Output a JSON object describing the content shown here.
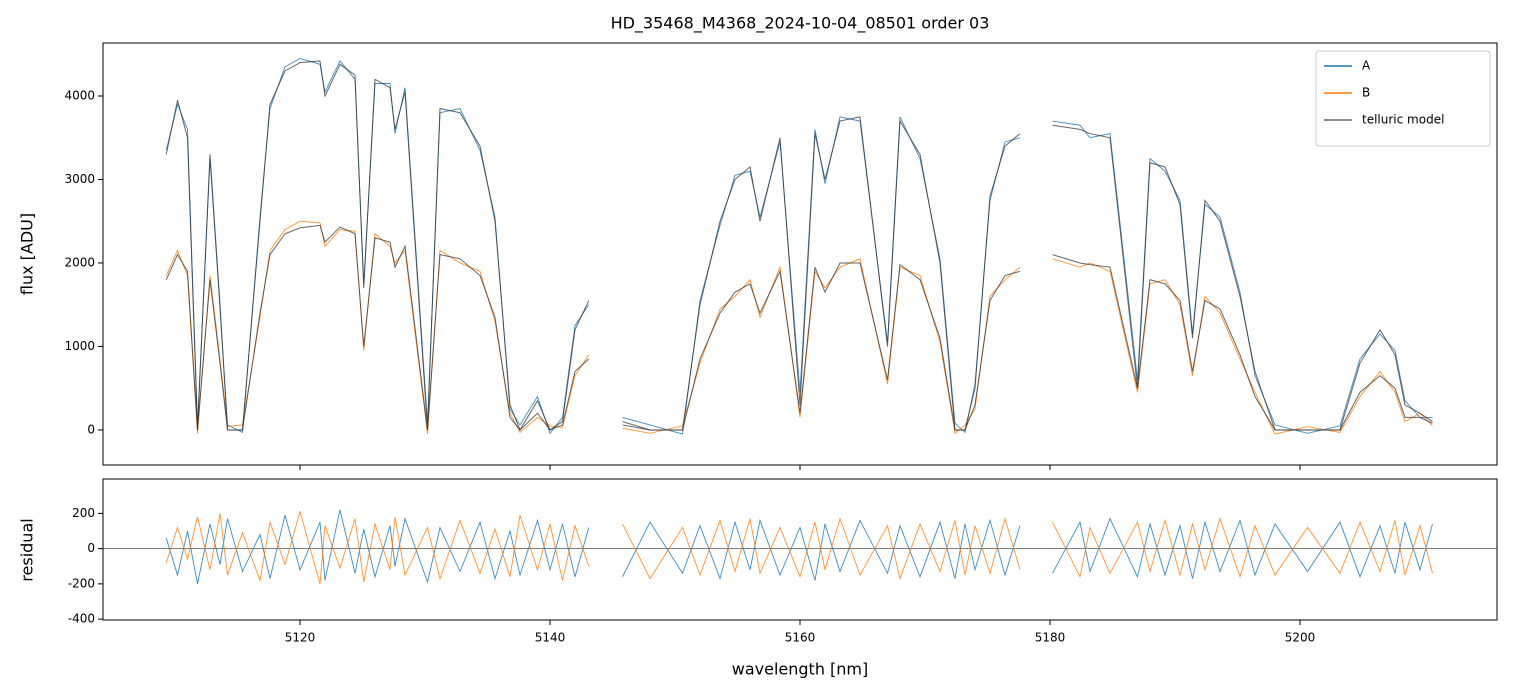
{
  "chart_data": [
    {
      "type": "line",
      "title": "HD_35468_M4368_2024-10-04_08501  order 03",
      "ylabel": "flux [ADU]",
      "x": [
        5109.3,
        5110.2,
        5111.0,
        5111.8,
        5112.8,
        5113.6,
        5114.2,
        5115.4,
        5116.8,
        5117.6,
        5118.8,
        5120.0,
        5121.6,
        5122.0,
        5123.2,
        5124.4,
        5125.1,
        5126.0,
        5127.2,
        5127.6,
        5128.4,
        5130.2,
        5131.2,
        5132.8,
        5134.4,
        5135.6,
        5136.8,
        5137.6,
        5139.0,
        5140.0,
        5141.0,
        5142.0,
        5143.1,
        5144.5,
        5145.8,
        5148.0,
        5150.6,
        5152.0,
        5153.6,
        5154.8,
        5156.0,
        5156.8,
        5158.4,
        5160.0,
        5161.2,
        5162.0,
        5163.2,
        5164.8,
        5167.0,
        5168.0,
        5169.6,
        5171.2,
        5172.4,
        5173.2,
        5174.0,
        5175.2,
        5176.4,
        5177.6,
        5178.9,
        5180.2,
        5182.4,
        5183.2,
        5184.8,
        5187.0,
        5188.0,
        5189.2,
        5190.4,
        5191.4,
        5192.4,
        5193.6,
        5195.2,
        5196.4,
        5198.0,
        5200.6,
        5203.2,
        5204.8,
        5206.4,
        5207.6,
        5208.4,
        5209.6,
        5210.6
      ],
      "series": [
        {
          "name": "A",
          "color": "#1f77b4",
          "values": [
            3350,
            3900,
            3600,
            50,
            3250,
            1450,
            60,
            -30,
            2550,
            3850,
            4350,
            4450,
            4380,
            4050,
            4420,
            4200,
            1750,
            4150,
            4150,
            3550,
            4100,
            80,
            3800,
            3850,
            3350,
            2550,
            250,
            60,
            400,
            -40,
            150,
            1250,
            1500,
            null,
            150,
            60,
            -50,
            1550,
            2450,
            3050,
            3100,
            2550,
            3450,
            450,
            3600,
            2950,
            3750,
            3700,
            1050,
            3750,
            3250,
            2050,
            80,
            -30,
            550,
            2750,
            3450,
            3500,
            null,
            3700,
            3650,
            3500,
            3550,
            600,
            3250,
            3100,
            2750,
            1150,
            2700,
            2550,
            1650,
            650,
            60,
            -40,
            50,
            850,
            1150,
            950,
            350,
            150,
            150
          ]
        },
        {
          "name": "B",
          "color": "#ff7f0e",
          "values": [
            1850,
            2150,
            1850,
            -40,
            1850,
            850,
            40,
            60,
            1350,
            2150,
            2400,
            2500,
            2480,
            2200,
            2400,
            2380,
            950,
            2350,
            2200,
            2000,
            2150,
            -50,
            2150,
            2000,
            1900,
            1300,
            200,
            -30,
            150,
            50,
            30,
            650,
            900,
            null,
            20,
            -40,
            50,
            800,
            1450,
            1600,
            1800,
            1350,
            1950,
            150,
            1900,
            1700,
            1950,
            2050,
            550,
            1950,
            1850,
            1050,
            -40,
            60,
            250,
            1600,
            1800,
            1950,
            null,
            2050,
            1950,
            2000,
            1900,
            450,
            1750,
            1800,
            1500,
            650,
            1600,
            1400,
            850,
            450,
            -50,
            40,
            -30,
            400,
            700,
            450,
            100,
            200,
            50
          ]
        },
        {
          "name": "telluric model",
          "color": "#333333",
          "model": true,
          "values": [
            3300,
            3950,
            3500,
            0,
            3300,
            1500,
            0,
            0,
            2500,
            3900,
            4300,
            4400,
            4420,
            4000,
            4380,
            4250,
            1700,
            4200,
            4100,
            3600,
            4050,
            0,
            3850,
            3800,
            3400,
            2500,
            300,
            0,
            350,
            0,
            100,
            1200,
            1550,
            null,
            100,
            0,
            0,
            1500,
            2500,
            3000,
            3150,
            2500,
            3500,
            300,
            3550,
            3000,
            3700,
            3750,
            1000,
            3700,
            3300,
            2000,
            0,
            0,
            500,
            2800,
            3400,
            3550,
            null,
            3650,
            3600,
            3550,
            3500,
            500,
            3200,
            3150,
            2700,
            1100,
            2750,
            2500,
            1600,
            700,
            0,
            0,
            0,
            800,
            1200,
            900,
            300,
            200,
            100
          ]
        },
        {
          "color": "#333333",
          "model": true,
          "values": [
            1800,
            2100,
            1900,
            0,
            1800,
            800,
            0,
            0,
            1400,
            2100,
            2350,
            2420,
            2450,
            2250,
            2430,
            2350,
            1000,
            2300,
            2250,
            1950,
            2200,
            0,
            2100,
            2050,
            1850,
            1350,
            150,
            0,
            200,
            0,
            60,
            700,
            850,
            null,
            60,
            0,
            0,
            850,
            1400,
            1650,
            1750,
            1400,
            1900,
            200,
            1950,
            1650,
            2000,
            2000,
            600,
            1980,
            1800,
            1100,
            0,
            0,
            300,
            1550,
            1850,
            1900,
            null,
            2100,
            2000,
            1980,
            1950,
            500,
            1800,
            1750,
            1550,
            700,
            1550,
            1450,
            900,
            400,
            0,
            0,
            0,
            450,
            650,
            500,
            150,
            150,
            80
          ]
        }
      ],
      "xlim": [
        5104.24,
        5215.76
      ],
      "xticks": [
        5120,
        5140,
        5160,
        5180,
        5200
      ],
      "ylim": [
        -420,
        4635
      ],
      "yticks": [
        0,
        1000,
        2000,
        3000,
        4000
      ],
      "legend": "upper right"
    },
    {
      "type": "line",
      "xlabel": "wavelength [nm]",
      "ylabel": "residual",
      "x": [
        5109.3,
        5110.2,
        5111.0,
        5111.8,
        5112.8,
        5113.6,
        5114.2,
        5115.4,
        5116.8,
        5117.6,
        5118.8,
        5120.0,
        5121.6,
        5122.0,
        5123.2,
        5124.4,
        5125.1,
        5126.0,
        5127.2,
        5127.6,
        5128.4,
        5130.2,
        5131.2,
        5132.8,
        5134.4,
        5135.6,
        5136.8,
        5137.6,
        5139.0,
        5140.0,
        5141.0,
        5142.0,
        5143.1,
        5144.5,
        5145.8,
        5148.0,
        5150.6,
        5152.0,
        5153.6,
        5154.8,
        5156.0,
        5156.8,
        5158.4,
        5160.0,
        5161.2,
        5162.0,
        5163.2,
        5164.8,
        5167.0,
        5168.0,
        5169.6,
        5171.2,
        5172.4,
        5173.2,
        5174.0,
        5175.2,
        5176.4,
        5177.6,
        5178.9,
        5180.2,
        5182.4,
        5183.2,
        5184.8,
        5187.0,
        5188.0,
        5189.2,
        5190.4,
        5191.4,
        5192.4,
        5193.6,
        5195.2,
        5196.4,
        5198.0,
        5200.6,
        5203.2,
        5204.8,
        5206.4,
        5207.6,
        5208.4,
        5209.6,
        5210.6
      ],
      "series": [
        {
          "color": "#1f77b4",
          "values": [
            60,
            -150,
            100,
            -200,
            140,
            -90,
            170,
            -130,
            80,
            -170,
            190,
            -120,
            150,
            -180,
            220,
            -140,
            110,
            -160,
            130,
            -100,
            170,
            -190,
            120,
            -130,
            150,
            -170,
            100,
            -150,
            160,
            -120,
            140,
            -160,
            120,
            null,
            -160,
            150,
            -140,
            130,
            -170,
            150,
            -120,
            160,
            -150,
            120,
            -180,
            140,
            -130,
            160,
            -140,
            130,
            -160,
            150,
            -170,
            140,
            -120,
            160,
            -150,
            130,
            null,
            -140,
            150,
            -130,
            170,
            -160,
            140,
            -150,
            130,
            -170,
            150,
            -130,
            160,
            -150,
            140,
            -130,
            150,
            -160,
            130,
            -140,
            150,
            -120,
            140
          ]
        },
        {
          "color": "#ff7f0e",
          "values": [
            -80,
            120,
            -60,
            180,
            -120,
            200,
            -150,
            90,
            -180,
            150,
            -90,
            210,
            -200,
            130,
            -110,
            170,
            -190,
            140,
            -120,
            180,
            -150,
            120,
            -170,
            160,
            -140,
            110,
            -160,
            190,
            -120,
            140,
            -180,
            130,
            -100,
            null,
            140,
            -170,
            120,
            -150,
            160,
            -130,
            170,
            -140,
            120,
            -160,
            150,
            -120,
            170,
            -150,
            130,
            -170,
            140,
            -130,
            160,
            -150,
            130,
            -140,
            170,
            -120,
            null,
            150,
            -160,
            120,
            -140,
            150,
            -130,
            160,
            -150,
            140,
            -120,
            170,
            -160,
            130,
            -150,
            120,
            -140,
            150,
            -130,
            160,
            -150,
            130,
            -140
          ]
        }
      ],
      "hline": 0,
      "xlim": [
        5104.24,
        5215.76
      ],
      "xticks": [
        5120,
        5140,
        5160,
        5180,
        5200
      ],
      "ylim": [
        -405,
        395
      ],
      "yticks": [
        -400,
        -200,
        0,
        200
      ]
    }
  ]
}
